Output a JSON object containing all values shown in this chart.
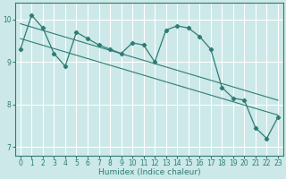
{
  "xlabel": "Humidex (Indice chaleur)",
  "xlim": [
    -0.5,
    23.5
  ],
  "ylim": [
    6.8,
    10.4
  ],
  "yticks": [
    7,
    8,
    9,
    10
  ],
  "xticks": [
    0,
    1,
    2,
    3,
    4,
    5,
    6,
    7,
    8,
    9,
    10,
    11,
    12,
    13,
    14,
    15,
    16,
    17,
    18,
    19,
    20,
    21,
    22,
    23
  ],
  "main_x": [
    0,
    1,
    2,
    3,
    4,
    5,
    6,
    7,
    8,
    9,
    10,
    11,
    12,
    13,
    14,
    15,
    16,
    17,
    18,
    19,
    20,
    21,
    22,
    23
  ],
  "main_y": [
    9.3,
    10.1,
    9.8,
    9.2,
    8.9,
    9.7,
    9.55,
    9.4,
    9.3,
    9.2,
    9.45,
    9.4,
    9.0,
    9.75,
    9.85,
    9.8,
    9.6,
    9.3,
    8.4,
    8.15,
    8.1,
    7.45,
    7.2,
    7.7
  ],
  "upper_line_x": [
    0,
    23
  ],
  "upper_line_y": [
    9.9,
    8.1
  ],
  "lower_line_x": [
    0,
    23
  ],
  "lower_line_y": [
    9.55,
    7.75
  ],
  "color": "#2e7d74",
  "bg_color": "#cce8e8",
  "grid_color": "#ffffff",
  "tick_fontsize": 5.5,
  "xlabel_fontsize": 6.5
}
